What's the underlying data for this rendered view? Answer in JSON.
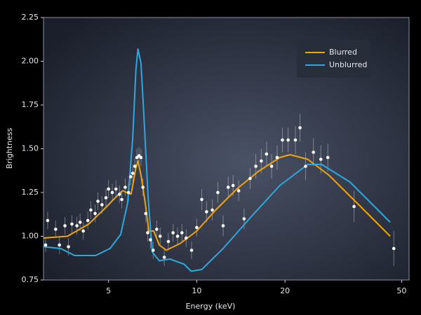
{
  "chart_data": {
    "type": "line",
    "x_label": "Energy (keV)",
    "y_label": "Brightness",
    "xlog": true,
    "xlim": [
      3,
      53
    ],
    "ylim": [
      0.75,
      2.25
    ],
    "xticks": [
      5,
      10,
      20,
      50
    ],
    "yticks": [
      0.75,
      {
        "value": 1,
        "label": "1.00"
      },
      1.25,
      {
        "value": 1.5,
        "label": "1.50"
      },
      1.75,
      {
        "value": 2,
        "label": "2.00"
      },
      2.25
    ],
    "legend": "upper right",
    "series": [
      {
        "name": "Blurred",
        "color": "#f0a30a",
        "x": [
          3.0,
          3.62,
          4.28,
          4.8,
          5.2,
          5.58,
          5.97,
          6.2,
          6.3,
          6.45,
          6.67,
          6.86,
          7.13,
          7.45,
          7.87,
          8.8,
          10,
          11.6,
          13.7,
          16.2,
          19.2,
          20.8,
          23.9,
          28.2,
          35.2,
          45.7
        ],
        "values": [
          0.99,
          1.0,
          1.07,
          1.15,
          1.21,
          1.26,
          1.24,
          1.39,
          1.43,
          1.35,
          1.19,
          1.03,
          1.03,
          0.95,
          0.92,
          0.96,
          1.03,
          1.15,
          1.27,
          1.37,
          1.45,
          1.466,
          1.44,
          1.35,
          1.19,
          1.0
        ]
      },
      {
        "name": "Unblurred",
        "color": "#2ea8dc",
        "x": [
          3.0,
          3.43,
          3.83,
          4.52,
          5.06,
          5.5,
          5.81,
          6.04,
          6.2,
          6.3,
          6.45,
          6.59,
          6.82,
          7.05,
          7.45,
          8.09,
          9.06,
          9.57,
          10.4,
          12.3,
          15.3,
          19.2,
          23.9,
          26.7,
          33.3,
          45.7
        ],
        "values": [
          0.94,
          0.93,
          0.89,
          0.89,
          0.93,
          1.01,
          1.19,
          1.55,
          1.95,
          2.07,
          1.99,
          1.71,
          1.23,
          0.91,
          0.86,
          0.87,
          0.84,
          0.8,
          0.81,
          0.93,
          1.11,
          1.29,
          1.41,
          1.41,
          1.31,
          1.08
        ]
      }
    ],
    "points": {
      "color": "#ffffff",
      "x": [
        3.05,
        3.1,
        3.3,
        3.4,
        3.55,
        3.65,
        3.75,
        3.9,
        4.0,
        4.1,
        4.25,
        4.35,
        4.5,
        4.6,
        4.75,
        4.9,
        5.0,
        5.15,
        5.3,
        5.45,
        5.55,
        5.7,
        5.85,
        5.95,
        6.05,
        6.15,
        6.25,
        6.35,
        6.45,
        6.55,
        6.7,
        6.8,
        6.95,
        7.1,
        7.3,
        7.5,
        7.75,
        8.0,
        8.3,
        8.6,
        8.9,
        9.2,
        9.6,
        10.0,
        10.4,
        10.8,
        11.3,
        11.8,
        12.3,
        12.8,
        13.3,
        13.9,
        14.5,
        15.2,
        15.9,
        16.6,
        17.3,
        18.0,
        18.8,
        19.6,
        20.5,
        21.7,
        22.5,
        23.5,
        25,
        26.5,
        28,
        34.4,
        47
      ],
      "values": [
        0.95,
        1.09,
        1.04,
        0.95,
        1.06,
        0.94,
        1.07,
        1.06,
        1.08,
        1.03,
        1.09,
        1.15,
        1.13,
        1.2,
        1.18,
        1.22,
        1.27,
        1.25,
        1.27,
        1.24,
        1.21,
        1.28,
        1.25,
        1.34,
        1.36,
        1.4,
        1.45,
        1.46,
        1.45,
        1.28,
        1.13,
        1.02,
        0.98,
        0.92,
        1.04,
        1.0,
        0.88,
        0.97,
        1.02,
        1.0,
        1.02,
        0.99,
        0.92,
        1.05,
        1.21,
        1.14,
        1.15,
        1.25,
        1.06,
        1.28,
        1.29,
        1.26,
        1.1,
        1.33,
        1.4,
        1.43,
        1.47,
        1.4,
        1.45,
        1.55,
        1.55,
        1.55,
        1.62,
        1.4,
        1.48,
        1.44,
        1.45,
        1.17,
        0.93
      ],
      "errors": [
        0.04,
        0.05,
        0.05,
        0.05,
        0.05,
        0.05,
        0.05,
        0.05,
        0.05,
        0.05,
        0.05,
        0.05,
        0.05,
        0.05,
        0.05,
        0.05,
        0.05,
        0.05,
        0.05,
        0.05,
        0.05,
        0.05,
        0.05,
        0.05,
        0.05,
        0.05,
        0.05,
        0.05,
        0.05,
        0.05,
        0.05,
        0.05,
        0.05,
        0.05,
        0.05,
        0.05,
        0.05,
        0.05,
        0.05,
        0.05,
        0.05,
        0.05,
        0.05,
        0.05,
        0.06,
        0.06,
        0.06,
        0.06,
        0.06,
        0.06,
        0.06,
        0.06,
        0.06,
        0.06,
        0.07,
        0.07,
        0.07,
        0.07,
        0.07,
        0.07,
        0.07,
        0.08,
        0.08,
        0.08,
        0.08,
        0.08,
        0.08,
        0.09,
        0.1
      ]
    }
  }
}
